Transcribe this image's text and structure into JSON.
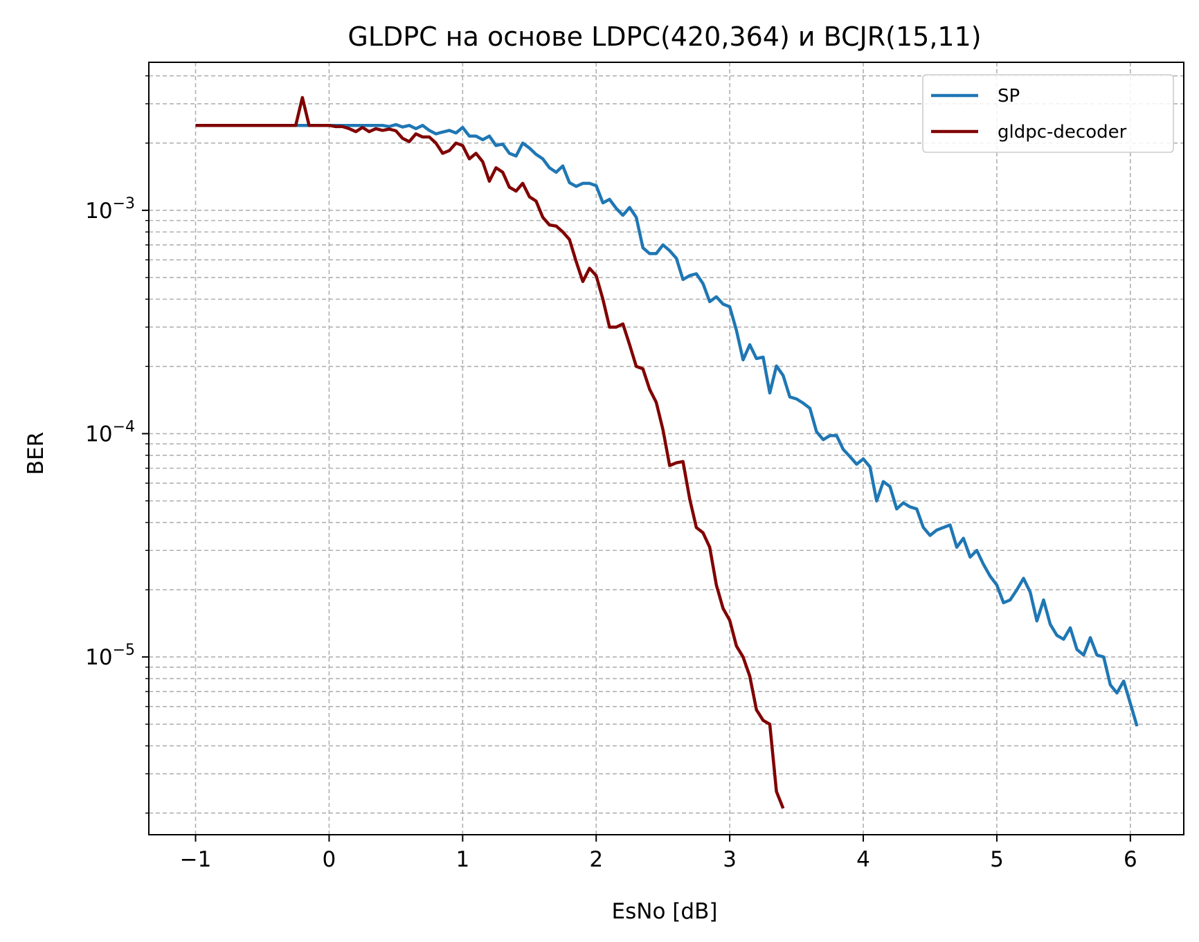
{
  "chart_data": {
    "type": "line",
    "title": "GLDPC на основе LDPC(420,364) и BCJR(15,11)",
    "xlabel": "EsNo [dB]",
    "ylabel": "BER",
    "xlim": [
      -1.35,
      6.4
    ],
    "ylim": [
      1.6e-06,
      0.0046
    ],
    "yscale": "log",
    "xticks": [
      -1,
      0,
      1,
      2,
      3,
      4,
      5,
      6
    ],
    "xtick_labels": [
      "−1",
      "0",
      "1",
      "2",
      "3",
      "4",
      "5",
      "6"
    ],
    "yticks": [
      {
        "value": 0.001,
        "base": "10",
        "exp": "−3"
      },
      {
        "value": 0.0001,
        "base": "10",
        "exp": "−4"
      },
      {
        "value": 1e-05,
        "base": "10",
        "exp": "−5"
      }
    ],
    "grid": true,
    "legend_position": "top-right",
    "series": [
      {
        "name": "SP",
        "color": "#1f77b4",
        "points": [
          [
            -1.0,
            0.0024
          ],
          [
            -0.95,
            0.0024
          ],
          [
            -0.9,
            0.0024
          ],
          [
            -0.85,
            0.0024
          ],
          [
            -0.8,
            0.0024
          ],
          [
            -0.75,
            0.0024
          ],
          [
            -0.7,
            0.0024
          ],
          [
            -0.65,
            0.0024
          ],
          [
            -0.6,
            0.0024
          ],
          [
            -0.55,
            0.0024
          ],
          [
            -0.5,
            0.0024
          ],
          [
            -0.45,
            0.0024
          ],
          [
            -0.4,
            0.0024
          ],
          [
            -0.35,
            0.0024
          ],
          [
            -0.3,
            0.0024
          ],
          [
            -0.25,
            0.0024
          ],
          [
            -0.2,
            0.0024
          ],
          [
            -0.15,
            0.0024
          ],
          [
            -0.1,
            0.0024
          ],
          [
            -0.05,
            0.0024
          ],
          [
            0.0,
            0.0024
          ],
          [
            0.05,
            0.0024
          ],
          [
            0.1,
            0.0024
          ],
          [
            0.15,
            0.0024
          ],
          [
            0.2,
            0.0024
          ],
          [
            0.25,
            0.0024
          ],
          [
            0.3,
            0.0024
          ],
          [
            0.35,
            0.0024
          ],
          [
            0.4,
            0.0024
          ],
          [
            0.45,
            0.00237
          ],
          [
            0.5,
            0.00242
          ],
          [
            0.55,
            0.00236
          ],
          [
            0.6,
            0.0024
          ],
          [
            0.65,
            0.00232
          ],
          [
            0.7,
            0.0024
          ],
          [
            0.75,
            0.00228
          ],
          [
            0.8,
            0.0022
          ],
          [
            0.85,
            0.00224
          ],
          [
            0.9,
            0.00228
          ],
          [
            0.95,
            0.00222
          ],
          [
            1.0,
            0.00235
          ],
          [
            1.05,
            0.00215
          ],
          [
            1.1,
            0.00215
          ],
          [
            1.15,
            0.00207
          ],
          [
            1.2,
            0.00215
          ],
          [
            1.25,
            0.00195
          ],
          [
            1.3,
            0.00198
          ],
          [
            1.35,
            0.0018
          ],
          [
            1.4,
            0.00175
          ],
          [
            1.45,
            0.002
          ],
          [
            1.5,
            0.0019
          ],
          [
            1.55,
            0.00178
          ],
          [
            1.6,
            0.0017
          ],
          [
            1.65,
            0.00155
          ],
          [
            1.7,
            0.00148
          ],
          [
            1.75,
            0.00158
          ],
          [
            1.8,
            0.00133
          ],
          [
            1.85,
            0.00128
          ],
          [
            1.9,
            0.00132
          ],
          [
            1.95,
            0.00132
          ],
          [
            2.0,
            0.00129
          ],
          [
            2.05,
            0.00108
          ],
          [
            2.1,
            0.00112
          ],
          [
            2.15,
            0.00102
          ],
          [
            2.2,
            0.00095
          ],
          [
            2.25,
            0.00103
          ],
          [
            2.3,
            0.00093
          ],
          [
            2.35,
            0.00068
          ],
          [
            2.4,
            0.00064
          ],
          [
            2.45,
            0.00064
          ],
          [
            2.5,
            0.0007
          ],
          [
            2.55,
            0.00066
          ],
          [
            2.6,
            0.00061
          ],
          [
            2.65,
            0.00049
          ],
          [
            2.7,
            0.00051
          ],
          [
            2.75,
            0.00052
          ],
          [
            2.8,
            0.00047
          ],
          [
            2.85,
            0.00039
          ],
          [
            2.9,
            0.00041
          ],
          [
            2.95,
            0.00038
          ],
          [
            3.0,
            0.00037
          ],
          [
            3.05,
            0.00029
          ],
          [
            3.1,
            0.000214
          ],
          [
            3.15,
            0.00025
          ],
          [
            3.2,
            0.000217
          ],
          [
            3.25,
            0.00022
          ],
          [
            3.3,
            0.000152
          ],
          [
            3.35,
            0.000201
          ],
          [
            3.4,
            0.000182
          ],
          [
            3.45,
            0.000146
          ],
          [
            3.5,
            0.000143
          ],
          [
            3.55,
            0.000137
          ],
          [
            3.6,
            0.00013
          ],
          [
            3.65,
            0.000102
          ],
          [
            3.7,
            9.4e-05
          ],
          [
            3.75,
            9.8e-05
          ],
          [
            3.8,
            9.8e-05
          ],
          [
            3.85,
            8.5e-05
          ],
          [
            3.9,
            7.9e-05
          ],
          [
            3.95,
            7.3e-05
          ],
          [
            4.0,
            7.7e-05
          ],
          [
            4.05,
            7.1e-05
          ],
          [
            4.1,
            5e-05
          ],
          [
            4.15,
            6.1e-05
          ],
          [
            4.2,
            5.8e-05
          ],
          [
            4.25,
            4.6e-05
          ],
          [
            4.3,
            4.9e-05
          ],
          [
            4.35,
            4.7e-05
          ],
          [
            4.4,
            4.6e-05
          ],
          [
            4.45,
            3.8e-05
          ],
          [
            4.5,
            3.5e-05
          ],
          [
            4.55,
            3.7e-05
          ],
          [
            4.6,
            3.8e-05
          ],
          [
            4.65,
            3.9e-05
          ],
          [
            4.7,
            3.1e-05
          ],
          [
            4.75,
            3.4e-05
          ],
          [
            4.8,
            2.8e-05
          ],
          [
            4.85,
            3e-05
          ],
          [
            4.9,
            2.6e-05
          ],
          [
            4.95,
            2.3e-05
          ],
          [
            5.0,
            2.1e-05
          ],
          [
            5.05,
            1.75e-05
          ],
          [
            5.1,
            1.8e-05
          ],
          [
            5.15,
            2e-05
          ],
          [
            5.2,
            2.25e-05
          ],
          [
            5.25,
            1.95e-05
          ],
          [
            5.3,
            1.45e-05
          ],
          [
            5.35,
            1.8e-05
          ],
          [
            5.4,
            1.4e-05
          ],
          [
            5.45,
            1.25e-05
          ],
          [
            5.5,
            1.2e-05
          ],
          [
            5.55,
            1.35e-05
          ],
          [
            5.6,
            1.08e-05
          ],
          [
            5.65,
            1.02e-05
          ],
          [
            5.7,
            1.22e-05
          ],
          [
            5.75,
            1.02e-05
          ],
          [
            5.8,
            1e-05
          ],
          [
            5.85,
            7.5e-06
          ],
          [
            5.9,
            6.9e-06
          ],
          [
            5.95,
            7.8e-06
          ],
          [
            6.0,
            6.2e-06
          ],
          [
            6.05,
            4.9e-06
          ]
        ]
      },
      {
        "name": "gldpc-decoder",
        "color": "#800000",
        "points": [
          [
            -1.0,
            0.0024
          ],
          [
            -0.95,
            0.0024
          ],
          [
            -0.9,
            0.0024
          ],
          [
            -0.85,
            0.0024
          ],
          [
            -0.8,
            0.0024
          ],
          [
            -0.75,
            0.0024
          ],
          [
            -0.7,
            0.0024
          ],
          [
            -0.65,
            0.0024
          ],
          [
            -0.6,
            0.0024
          ],
          [
            -0.55,
            0.0024
          ],
          [
            -0.5,
            0.0024
          ],
          [
            -0.45,
            0.0024
          ],
          [
            -0.4,
            0.0024
          ],
          [
            -0.35,
            0.0024
          ],
          [
            -0.3,
            0.0024
          ],
          [
            -0.25,
            0.0024
          ],
          [
            -0.2,
            0.0032
          ],
          [
            -0.15,
            0.0024
          ],
          [
            -0.1,
            0.0024
          ],
          [
            -0.05,
            0.0024
          ],
          [
            0.0,
            0.0024
          ],
          [
            0.05,
            0.00237
          ],
          [
            0.1,
            0.00237
          ],
          [
            0.15,
            0.00232
          ],
          [
            0.2,
            0.00225
          ],
          [
            0.25,
            0.00235
          ],
          [
            0.3,
            0.00225
          ],
          [
            0.35,
            0.00232
          ],
          [
            0.4,
            0.00228
          ],
          [
            0.45,
            0.00231
          ],
          [
            0.5,
            0.00227
          ],
          [
            0.55,
            0.0021
          ],
          [
            0.6,
            0.00203
          ],
          [
            0.65,
            0.0022
          ],
          [
            0.7,
            0.00213
          ],
          [
            0.75,
            0.00213
          ],
          [
            0.8,
            0.002
          ],
          [
            0.85,
            0.0018
          ],
          [
            0.9,
            0.00185
          ],
          [
            0.95,
            0.002
          ],
          [
            1.0,
            0.00195
          ],
          [
            1.05,
            0.0017
          ],
          [
            1.1,
            0.0018
          ],
          [
            1.15,
            0.00165
          ],
          [
            1.2,
            0.00135
          ],
          [
            1.25,
            0.00155
          ],
          [
            1.3,
            0.00148
          ],
          [
            1.35,
            0.00127
          ],
          [
            1.4,
            0.00122
          ],
          [
            1.45,
            0.00132
          ],
          [
            1.5,
            0.00115
          ],
          [
            1.55,
            0.0011
          ],
          [
            1.6,
            0.00093
          ],
          [
            1.65,
            0.00086
          ],
          [
            1.7,
            0.00085
          ],
          [
            1.75,
            0.0008
          ],
          [
            1.8,
            0.00074
          ],
          [
            1.85,
            0.00059
          ],
          [
            1.9,
            0.00048
          ],
          [
            1.95,
            0.00055
          ],
          [
            2.0,
            0.00051
          ],
          [
            2.05,
            0.0004
          ],
          [
            2.1,
            0.0003
          ],
          [
            2.15,
            0.0003
          ],
          [
            2.2,
            0.00031
          ],
          [
            2.25,
            0.00025
          ],
          [
            2.3,
            0.0002
          ],
          [
            2.35,
            0.000195
          ],
          [
            2.4,
            0.000158
          ],
          [
            2.45,
            0.000138
          ],
          [
            2.5,
            0.000104
          ],
          [
            2.55,
            7.2e-05
          ],
          [
            2.6,
            7.4e-05
          ],
          [
            2.65,
            7.5e-05
          ],
          [
            2.7,
            5.1e-05
          ],
          [
            2.75,
            3.8e-05
          ],
          [
            2.8,
            3.6e-05
          ],
          [
            2.85,
            3.1e-05
          ],
          [
            2.9,
            2.1e-05
          ],
          [
            2.95,
            1.65e-05
          ],
          [
            3.0,
            1.46e-05
          ],
          [
            3.05,
            1.12e-05
          ],
          [
            3.1,
            1e-05
          ],
          [
            3.15,
            8.2e-06
          ],
          [
            3.2,
            5.8e-06
          ],
          [
            3.25,
            5.2e-06
          ],
          [
            3.3,
            5e-06
          ],
          [
            3.35,
            2.5e-06
          ],
          [
            3.4,
            2.1e-06
          ]
        ]
      }
    ]
  }
}
